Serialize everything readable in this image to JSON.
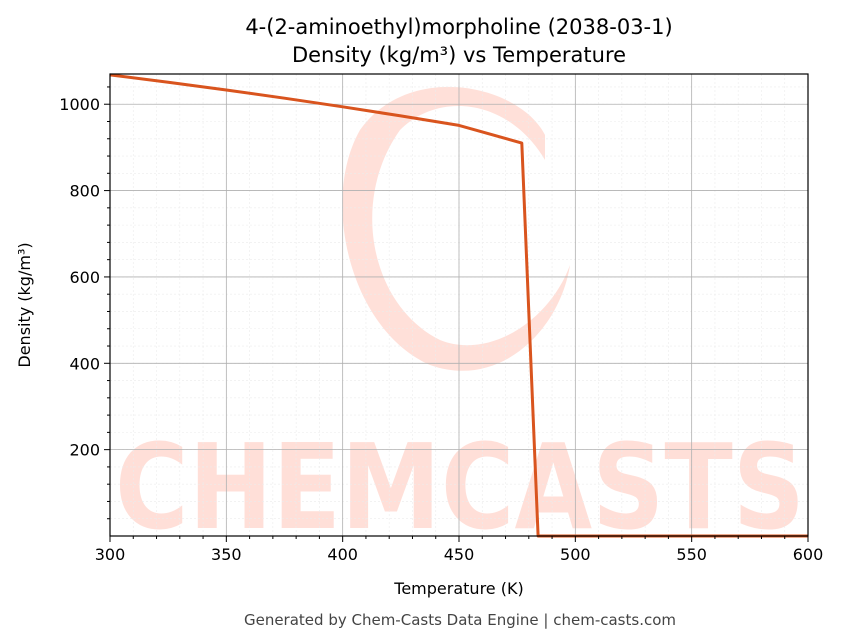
{
  "chart_data": {
    "type": "line",
    "title": "4-(2-aminoethyl)morpholine (2038-03-1)",
    "subtitle": "Density (kg/m³) vs Temperature",
    "xlabel": "Temperature (K)",
    "ylabel": "Density (kg/m³)",
    "xlim": [
      300,
      600
    ],
    "ylim": [
      0,
      1070
    ],
    "xticks": [
      300,
      350,
      400,
      450,
      500,
      550,
      600
    ],
    "yticks": [
      200,
      400,
      600,
      800,
      1000
    ],
    "grid": true,
    "line_color": "#d9541e",
    "series": [
      {
        "x": [
          300,
          325,
          350,
          375,
          400,
          425,
          450,
          477,
          484,
          490,
          500,
          550,
          600
        ],
        "y": [
          1068,
          1051,
          1033,
          1014,
          994,
          973,
          951,
          910,
          0,
          0,
          0,
          0,
          0
        ]
      }
    ]
  },
  "watermark": {
    "text": "CHEMCASTS",
    "color": "#ffd5cc"
  },
  "footer": "Generated by Chem-Casts Data Engine | chem-casts.com"
}
